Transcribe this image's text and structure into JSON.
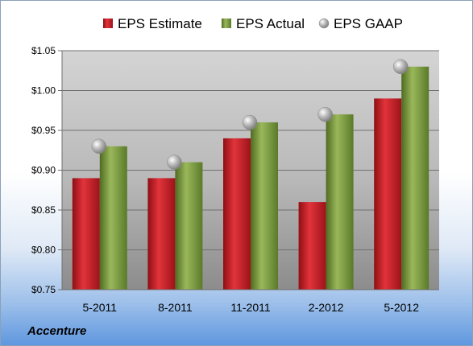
{
  "company": "Accenture",
  "chart_data": {
    "type": "bar",
    "categories": [
      "5-2011",
      "8-2011",
      "11-2011",
      "2-2012",
      "5-2012"
    ],
    "series": [
      {
        "name": "EPS Estimate",
        "type": "bar",
        "color": "#c8202a",
        "values": [
          0.89,
          0.89,
          0.94,
          0.86,
          0.99
        ]
      },
      {
        "name": "EPS Actual",
        "type": "bar",
        "color": "#7a9a3c",
        "values": [
          0.93,
          0.91,
          0.96,
          0.97,
          1.03
        ]
      },
      {
        "name": "EPS GAAP",
        "type": "scatter",
        "color": "#a0a0a0",
        "values": [
          0.93,
          0.91,
          0.96,
          0.97,
          1.03
        ]
      }
    ],
    "yticks": [
      "$0.75",
      "$0.80",
      "$0.85",
      "$0.90",
      "$0.95",
      "$1.00",
      "$1.05"
    ],
    "ylim": [
      0.75,
      1.05
    ],
    "grid": true,
    "legend_position": "top"
  }
}
